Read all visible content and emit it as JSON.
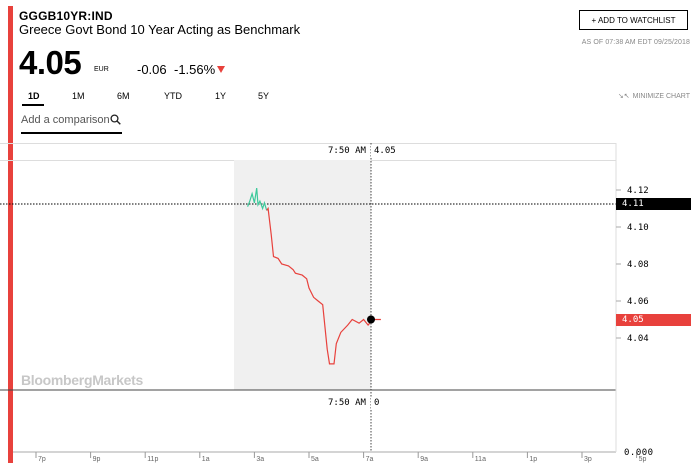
{
  "header": {
    "ticker": "GGGB10YR:IND",
    "name": "Greece Govt Bond 10 Year Acting as Benchmark",
    "watchlist_label": "+ ADD TO WATCHLIST",
    "as_of": "AS OF 07:38 AM EDT 09/25/2018"
  },
  "quote": {
    "price": "4.05",
    "currency": "EUR",
    "change": "-0.06",
    "change_pct": "-1.56%"
  },
  "tabs": [
    "1D",
    "1M",
    "6M",
    "YTD",
    "1Y",
    "5Y"
  ],
  "active_tab": "1D",
  "minimize_label": "MINIMIZE CHART",
  "compare": {
    "placeholder": "Add a comparison"
  },
  "watermark": "BloombergMarkets",
  "colors": {
    "accent": "#e8413c",
    "up": "#3cc99a",
    "down": "#e8413c"
  },
  "crosshair": {
    "time": "7:50 AM",
    "value": "4.05",
    "volume_time": "7:50 AM",
    "volume_value": "0"
  },
  "tags": {
    "prev_close": "4.11",
    "current": "4.05"
  },
  "volume_label": "0.000",
  "chart_data": {
    "type": "line",
    "ylim": [
      4.0,
      4.14
    ],
    "y_ticks": [
      "4.12",
      "4.10",
      "4.08",
      "4.06",
      "4.04"
    ],
    "x_ticks": [
      "7p",
      "9p",
      "11p",
      "1a",
      "3a",
      "5a",
      "7a",
      "9a",
      "11a",
      "1p",
      "3p",
      "5p"
    ],
    "previous_close": 4.11,
    "series": [
      {
        "values": [
          [
            "2:45",
            4.111
          ],
          [
            "2:50",
            4.114
          ],
          [
            "2:55",
            4.118
          ],
          [
            "3:00",
            4.113
          ],
          [
            "3:05",
            4.121
          ],
          [
            "3:08",
            4.112
          ],
          [
            "3:12",
            4.114
          ],
          [
            "3:18",
            4.11
          ],
          [
            "3:22",
            4.113
          ],
          [
            "3:27",
            4.109
          ],
          [
            "3:30",
            4.11
          ],
          [
            "3:37",
            4.096
          ],
          [
            "3:42",
            4.084
          ],
          [
            "3:52",
            4.083
          ],
          [
            "4:00",
            4.08
          ],
          [
            "4:15",
            4.079
          ],
          [
            "4:25",
            4.077
          ],
          [
            "4:30",
            4.075
          ],
          [
            "4:45",
            4.074
          ],
          [
            "4:55",
            4.072
          ],
          [
            "5:00",
            4.067
          ],
          [
            "5:10",
            4.062
          ],
          [
            "5:20",
            4.06
          ],
          [
            "5:30",
            4.058
          ],
          [
            "5:40",
            4.034
          ],
          [
            "5:45",
            4.026
          ],
          [
            "5:55",
            4.026
          ],
          [
            "6:00",
            4.037
          ],
          [
            "6:10",
            4.043
          ],
          [
            "6:25",
            4.047
          ],
          [
            "6:35",
            4.05
          ],
          [
            "6:50",
            4.048
          ],
          [
            "7:00",
            4.05
          ],
          [
            "7:10",
            4.047
          ],
          [
            "7:20",
            4.05
          ],
          [
            "7:38",
            4.05
          ]
        ]
      }
    ]
  }
}
